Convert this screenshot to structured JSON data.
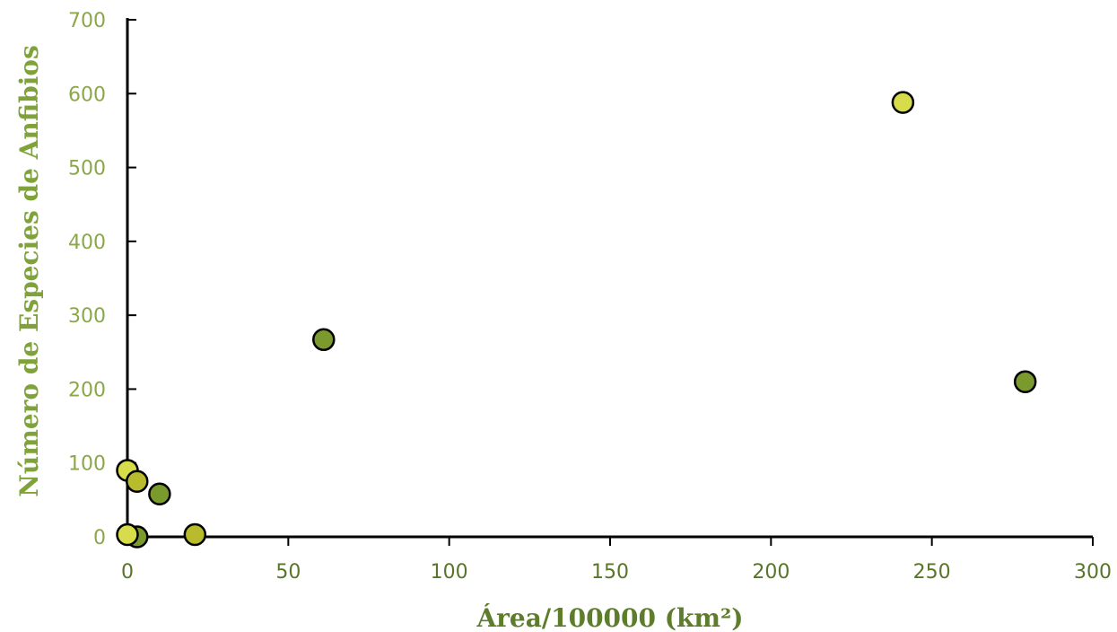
{
  "chart_data": {
    "type": "scatter",
    "title": "",
    "xlabel": "Área/100000 (km²)",
    "ylabel": "Número de Especies de Anfibios",
    "xlim": [
      0,
      300
    ],
    "ylim": [
      0,
      700
    ],
    "xticks": [
      "0",
      "50",
      "100",
      "150",
      "200",
      "250",
      "300"
    ],
    "yticks": [
      "0",
      "100",
      "200",
      "300",
      "400",
      "500",
      "600",
      "700"
    ],
    "grid": false,
    "legend": "none",
    "points": [
      {
        "x": 3,
        "y": 0,
        "color": "#7b9a2e"
      },
      {
        "x": 0,
        "y": 3,
        "color": "#d6dc4a"
      },
      {
        "x": 21,
        "y": 3,
        "color": "#b8bc2c"
      },
      {
        "x": 0,
        "y": 90,
        "color": "#d6dc4a"
      },
      {
        "x": 3,
        "y": 75,
        "color": "#b8bc2c"
      },
      {
        "x": 10,
        "y": 58,
        "color": "#7b9a2e"
      },
      {
        "x": 61,
        "y": 267,
        "color": "#7b9a2e"
      },
      {
        "x": 241,
        "y": 588,
        "color": "#d6dc4a"
      },
      {
        "x": 279,
        "y": 210,
        "color": "#7b9a2e"
      }
    ]
  }
}
